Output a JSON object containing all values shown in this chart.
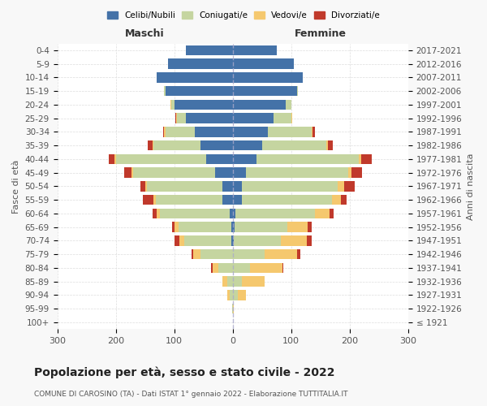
{
  "age_groups": [
    "100+",
    "95-99",
    "90-94",
    "85-89",
    "80-84",
    "75-79",
    "70-74",
    "65-69",
    "60-64",
    "55-59",
    "50-54",
    "45-49",
    "40-44",
    "35-39",
    "30-34",
    "25-29",
    "20-24",
    "15-19",
    "10-14",
    "5-9",
    "0-4"
  ],
  "birth_years": [
    "≤ 1921",
    "1922-1926",
    "1927-1931",
    "1932-1936",
    "1937-1941",
    "1942-1946",
    "1947-1951",
    "1952-1956",
    "1957-1961",
    "1962-1966",
    "1967-1971",
    "1972-1976",
    "1977-1981",
    "1982-1986",
    "1987-1991",
    "1992-1996",
    "1997-2001",
    "2002-2006",
    "2007-2011",
    "2012-2016",
    "2017-2021"
  ],
  "male": {
    "celibi": [
      0,
      0,
      0,
      0,
      0,
      0,
      3,
      3,
      5,
      17,
      17,
      30,
      45,
      55,
      65,
      80,
      100,
      115,
      130,
      110,
      80
    ],
    "coniugati": [
      0,
      1,
      5,
      10,
      25,
      55,
      80,
      90,
      120,
      115,
      130,
      140,
      155,
      80,
      50,
      15,
      5,
      2,
      0,
      0,
      0
    ],
    "vedovi": [
      0,
      0,
      5,
      8,
      10,
      12,
      8,
      6,
      5,
      3,
      3,
      3,
      2,
      2,
      2,
      2,
      1,
      0,
      0,
      0,
      0
    ],
    "divorziati": [
      0,
      0,
      0,
      0,
      2,
      4,
      8,
      5,
      7,
      18,
      8,
      12,
      10,
      8,
      2,
      1,
      0,
      0,
      0,
      0,
      0
    ]
  },
  "female": {
    "nubili": [
      0,
      0,
      0,
      0,
      0,
      0,
      2,
      3,
      5,
      15,
      15,
      22,
      40,
      50,
      60,
      70,
      90,
      110,
      120,
      105,
      75
    ],
    "coniugate": [
      0,
      1,
      8,
      15,
      30,
      55,
      80,
      90,
      135,
      155,
      165,
      175,
      175,
      110,
      75,
      30,
      10,
      2,
      0,
      0,
      0
    ],
    "vedove": [
      0,
      1,
      15,
      40,
      55,
      55,
      45,
      35,
      25,
      15,
      10,
      6,
      4,
      3,
      2,
      1,
      0,
      0,
      0,
      0,
      0
    ],
    "divorziate": [
      0,
      0,
      0,
      0,
      2,
      5,
      8,
      7,
      8,
      10,
      18,
      18,
      18,
      8,
      3,
      1,
      0,
      0,
      0,
      0,
      0
    ]
  },
  "colors": {
    "celibi_nubili": "#4472a8",
    "coniugati": "#c5d5a0",
    "vedovi": "#f5c86e",
    "divorziati": "#c0392b"
  },
  "xlim": 300,
  "title": "Popolazione per età, sesso e stato civile - 2022",
  "subtitle": "COMUNE DI CAROSINO (TA) - Dati ISTAT 1° gennaio 2022 - Elaborazione TUTTITALIA.IT",
  "ylabel_left": "Fasce di età",
  "ylabel_right": "Anni di nascita",
  "xlabel_left": "Maschi",
  "xlabel_right": "Femmine",
  "bg_color": "#f8f8f8",
  "plot_bg_color": "#ffffff",
  "legend_labels": [
    "Celibi/Nubili",
    "Coniugati/e",
    "Vedovi/e",
    "Divorziati/e"
  ]
}
